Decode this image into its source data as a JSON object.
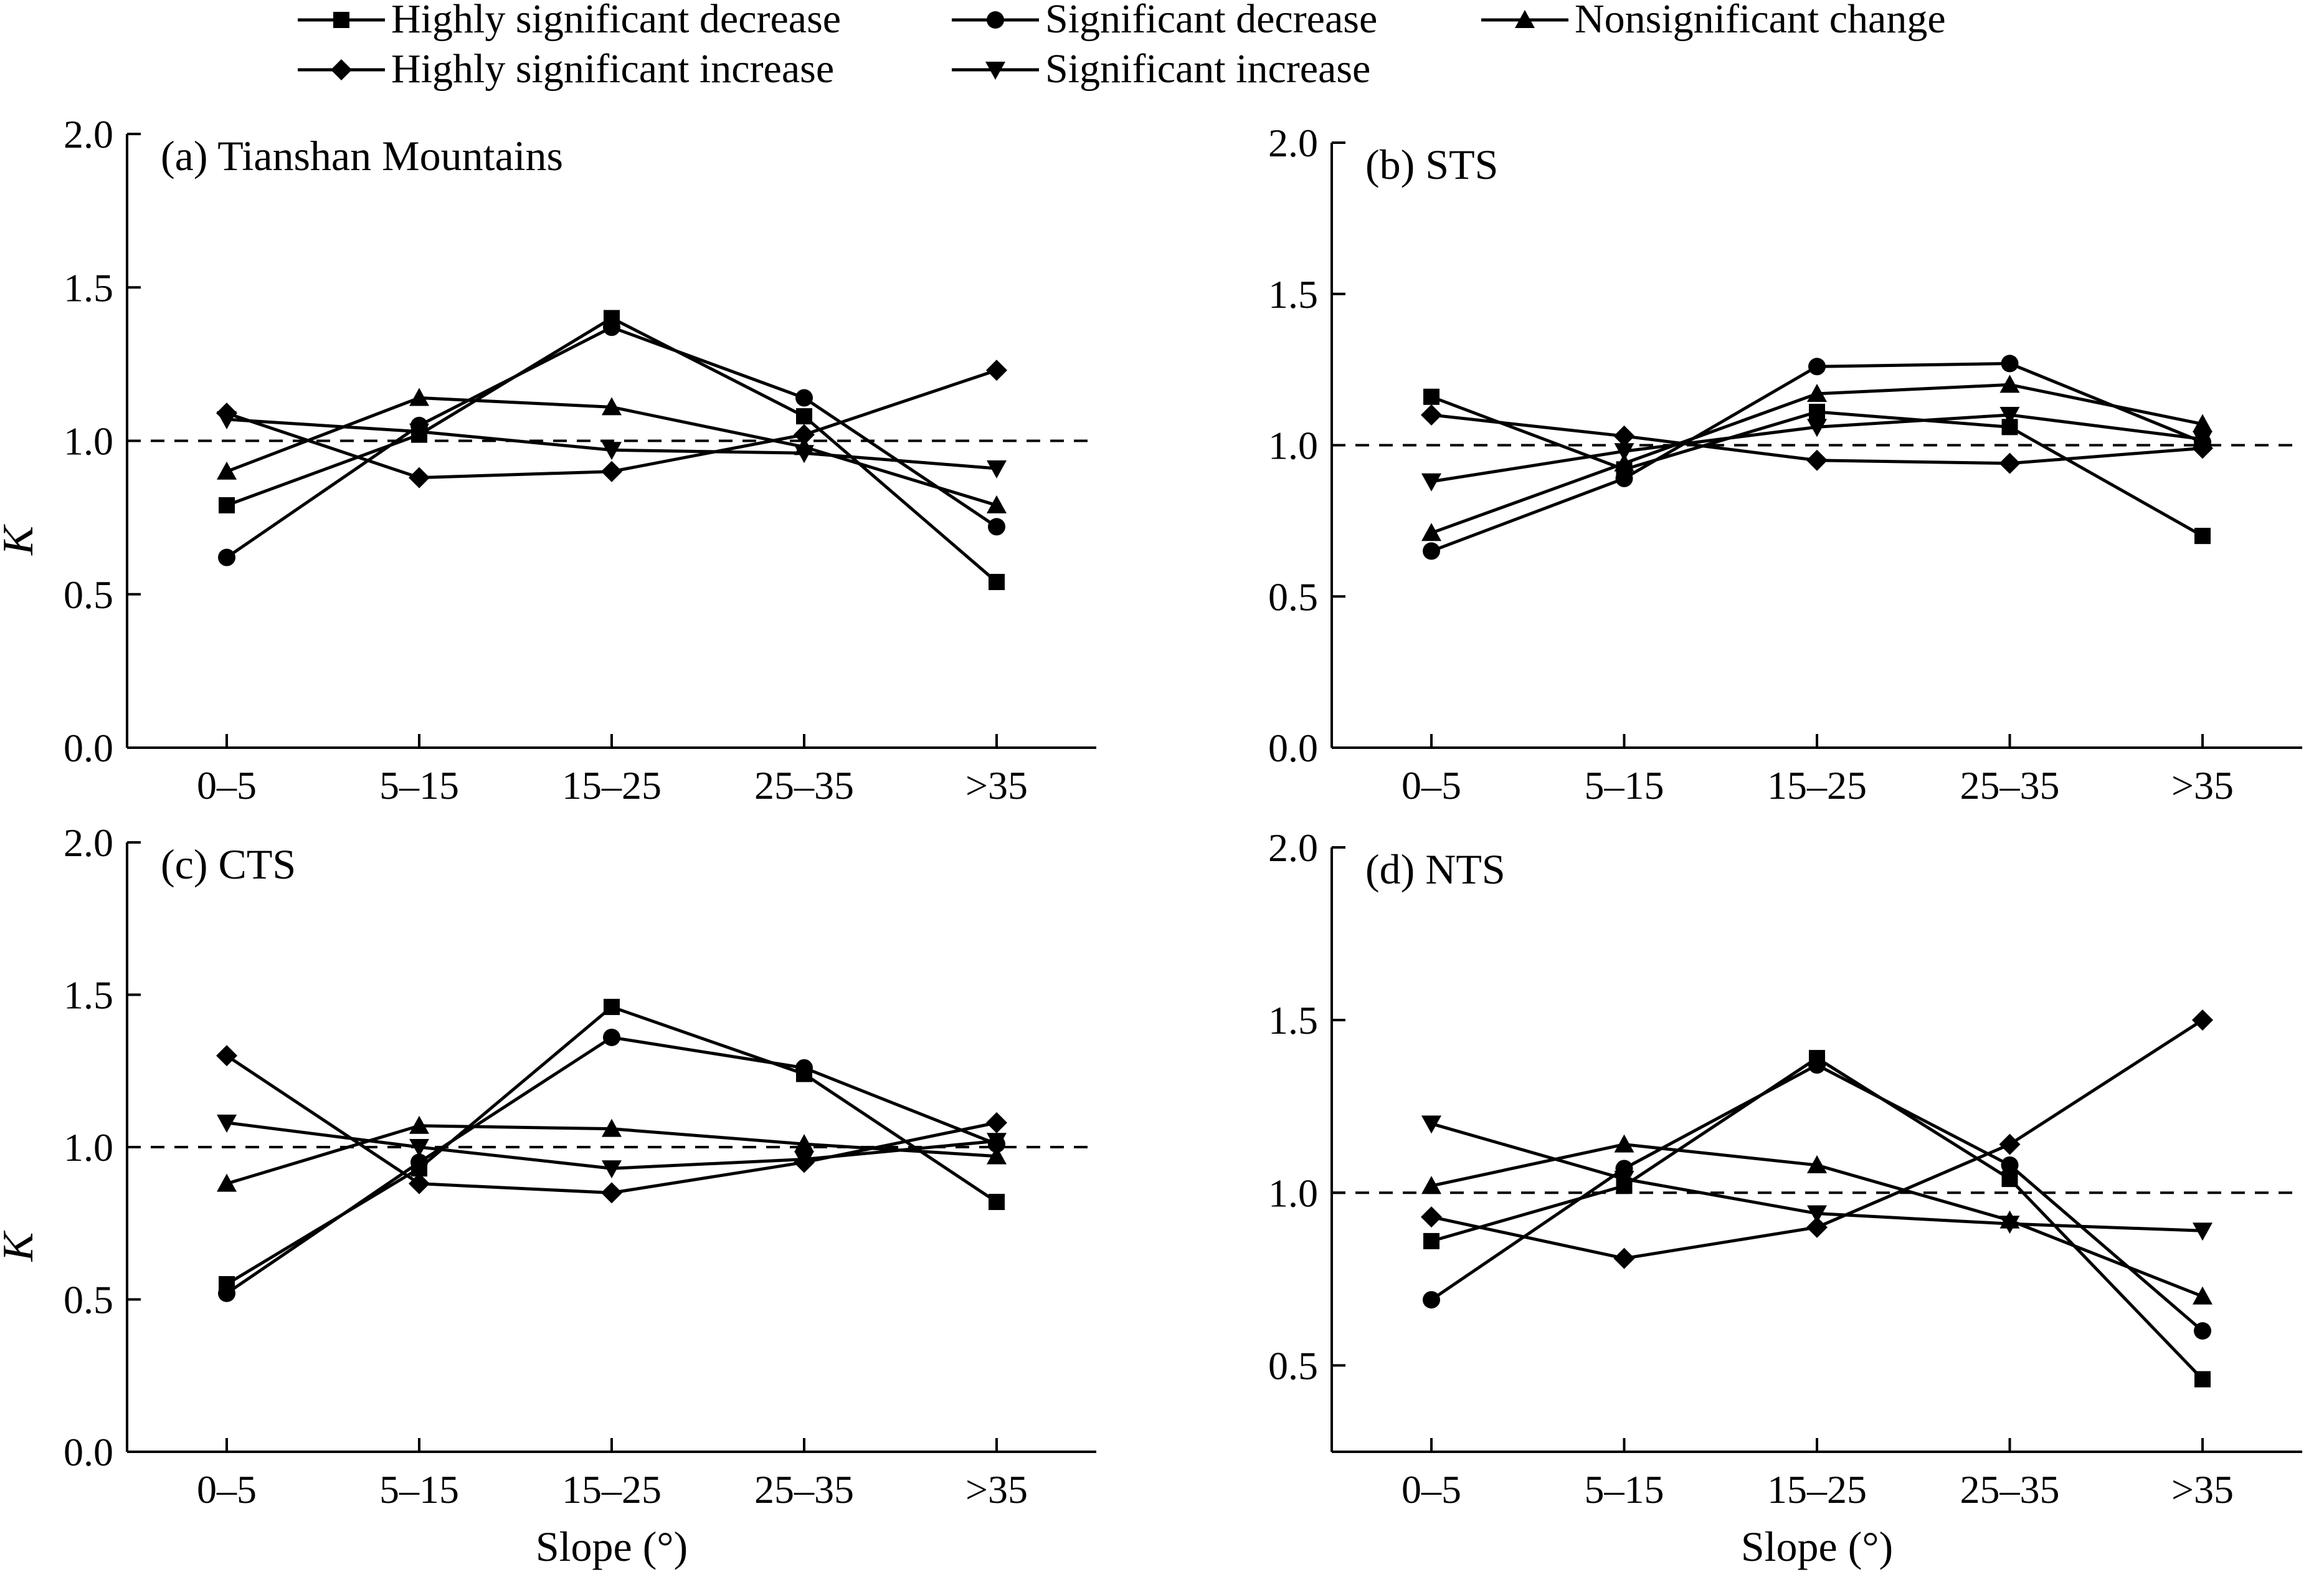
{
  "legend": {
    "entries": [
      {
        "label": "Highly significant decrease",
        "marker": "square"
      },
      {
        "label": "Significant decrease",
        "marker": "circle"
      },
      {
        "label": "Nonsignificant change",
        "marker": "triangle-up"
      },
      {
        "label": "Highly significant increase",
        "marker": "diamond"
      },
      {
        "label": "Significant increase",
        "marker": "triangle-down"
      }
    ]
  },
  "chart_data": [
    {
      "type": "line",
      "title": "(a) Tianshan Mountains",
      "xlabel": "",
      "ylabel": "K",
      "categories": [
        "0–5",
        "5–15",
        "15–25",
        "25–35",
        ">35"
      ],
      "ylim": [
        0,
        2
      ],
      "yticks": [
        "0.0",
        "0.5",
        "1.0",
        "1.5",
        "2.0"
      ],
      "reference_line": 1.0,
      "series": [
        {
          "name": "Highly significant decrease",
          "marker": "square",
          "values": [
            0.79,
            1.02,
            1.4,
            1.08,
            0.54
          ]
        },
        {
          "name": "Significant decrease",
          "marker": "circle",
          "values": [
            0.62,
            1.05,
            1.37,
            1.14,
            0.72
          ]
        },
        {
          "name": "Nonsignificant change",
          "marker": "triangle-up",
          "values": [
            0.9,
            1.14,
            1.11,
            0.98,
            0.79
          ]
        },
        {
          "name": "Highly significant increase",
          "marker": "diamond",
          "values": [
            1.09,
            0.88,
            0.9,
            1.02,
            1.23
          ]
        },
        {
          "name": "Significant increase",
          "marker": "triangle-down",
          "values": [
            1.07,
            1.03,
            0.97,
            0.96,
            0.91
          ]
        }
      ]
    },
    {
      "type": "line",
      "title": "(b) STS",
      "xlabel": "",
      "ylabel": "",
      "categories": [
        "0–5",
        "5–15",
        "15–25",
        "25–35",
        ">35"
      ],
      "ylim": [
        0,
        2
      ],
      "yticks": [
        "0.0",
        "0.5",
        "1.0",
        "1.5",
        "2.0"
      ],
      "reference_line": 1.0,
      "series": [
        {
          "name": "Highly significant decrease",
          "marker": "square",
          "values": [
            1.16,
            0.92,
            1.11,
            1.06,
            0.7
          ]
        },
        {
          "name": "Significant decrease",
          "marker": "circle",
          "values": [
            0.65,
            0.89,
            1.26,
            1.27,
            1.01
          ]
        },
        {
          "name": "Nonsignificant change",
          "marker": "triangle-up",
          "values": [
            0.71,
            0.94,
            1.17,
            1.2,
            1.07
          ]
        },
        {
          "name": "Highly significant increase",
          "marker": "diamond",
          "values": [
            1.1,
            1.03,
            0.95,
            0.94,
            0.99
          ]
        },
        {
          "name": "Significant increase",
          "marker": "triangle-down",
          "values": [
            0.88,
            0.98,
            1.06,
            1.1,
            1.02
          ]
        }
      ]
    },
    {
      "type": "line",
      "title": "(c) CTS",
      "xlabel": "Slope (°)",
      "ylabel": "K",
      "categories": [
        "0–5",
        "5–15",
        "15–25",
        "25–35",
        ">35"
      ],
      "ylim": [
        0,
        2
      ],
      "yticks": [
        "0.0",
        "0.5",
        "1.0",
        "1.5",
        "2.0"
      ],
      "reference_line": 1.0,
      "series": [
        {
          "name": "Highly significant decrease",
          "marker": "square",
          "values": [
            0.55,
            0.93,
            1.46,
            1.24,
            0.82
          ]
        },
        {
          "name": "Significant decrease",
          "marker": "circle",
          "values": [
            0.52,
            0.95,
            1.36,
            1.26,
            1.01
          ]
        },
        {
          "name": "Nonsignificant change",
          "marker": "triangle-up",
          "values": [
            0.88,
            1.07,
            1.06,
            1.01,
            0.97
          ]
        },
        {
          "name": "Highly significant increase",
          "marker": "diamond",
          "values": [
            1.3,
            0.88,
            0.85,
            0.95,
            1.08
          ]
        },
        {
          "name": "Significant increase",
          "marker": "triangle-down",
          "values": [
            1.08,
            1.0,
            0.93,
            0.96,
            1.02
          ]
        }
      ]
    },
    {
      "type": "line",
      "title": "(d) NTS",
      "xlabel": "Slope (°)",
      "ylabel": "",
      "categories": [
        "0–5",
        "5–15",
        "15–25",
        "25–35",
        ">35"
      ],
      "ylim": [
        0.25,
        2
      ],
      "yticks": [
        "0.5",
        "1.0",
        "1.5",
        "2.0"
      ],
      "reference_line": 1.0,
      "series": [
        {
          "name": "Highly significant decrease",
          "marker": "square",
          "values": [
            0.86,
            1.02,
            1.39,
            1.04,
            0.46
          ]
        },
        {
          "name": "Significant decrease",
          "marker": "circle",
          "values": [
            0.69,
            1.07,
            1.37,
            1.08,
            0.6
          ]
        },
        {
          "name": "Nonsignificant change",
          "marker": "triangle-up",
          "values": [
            1.02,
            1.14,
            1.08,
            0.92,
            0.7
          ]
        },
        {
          "name": "Highly significant increase",
          "marker": "diamond",
          "values": [
            0.93,
            0.81,
            0.9,
            1.14,
            1.5
          ]
        },
        {
          "name": "Significant increase",
          "marker": "triangle-down",
          "values": [
            1.2,
            1.04,
            0.94,
            0.91,
            0.89
          ]
        }
      ]
    }
  ]
}
